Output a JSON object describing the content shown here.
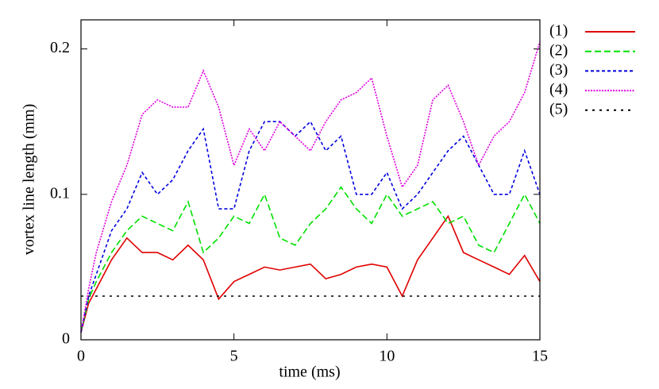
{
  "chart_data": {
    "type": "line",
    "xlabel": "time (ms)",
    "ylabel": "vortex line length (mm)",
    "x": [
      0,
      0.25,
      0.5,
      1,
      1.5,
      2,
      2.5,
      3,
      3.5,
      4,
      4.5,
      5,
      5.5,
      6,
      6.5,
      7,
      7.5,
      8,
      8.5,
      9,
      9.5,
      10,
      10.5,
      11,
      11.5,
      12,
      12.5,
      13,
      13.5,
      14,
      14.5,
      15
    ],
    "xlim": [
      0,
      15
    ],
    "xticks": [
      0,
      5,
      10,
      15
    ],
    "ylim": [
      0,
      0.22
    ],
    "yticks": [
      0,
      0.1,
      0.2
    ],
    "series": [
      {
        "name": "(1)",
        "color": "#e00000",
        "dash": "solid",
        "values": [
          0.005,
          0.025,
          0.035,
          0.055,
          0.07,
          0.06,
          0.06,
          0.055,
          0.065,
          0.055,
          0.028,
          0.04,
          0.045,
          0.05,
          0.048,
          0.05,
          0.052,
          0.042,
          0.045,
          0.05,
          0.052,
          0.05,
          0.03,
          0.055,
          0.07,
          0.085,
          0.06,
          0.055,
          0.05,
          0.045,
          0.058,
          0.04
        ]
      },
      {
        "name": "(2)",
        "color": "#00e000",
        "dash": "dashed",
        "values": [
          0.005,
          0.028,
          0.04,
          0.06,
          0.075,
          0.085,
          0.08,
          0.075,
          0.095,
          0.06,
          0.07,
          0.085,
          0.08,
          0.1,
          0.07,
          0.065,
          0.08,
          0.09,
          0.105,
          0.09,
          0.08,
          0.1,
          0.085,
          0.09,
          0.095,
          0.08,
          0.085,
          0.065,
          0.06,
          0.08,
          0.1,
          0.08
        ]
      },
      {
        "name": "(3)",
        "color": "#0000e0",
        "dash": "dotted",
        "values": [
          0.005,
          0.03,
          0.045,
          0.075,
          0.09,
          0.115,
          0.1,
          0.11,
          0.13,
          0.145,
          0.09,
          0.09,
          0.13,
          0.15,
          0.15,
          0.14,
          0.15,
          0.13,
          0.14,
          0.1,
          0.1,
          0.115,
          0.09,
          0.1,
          0.115,
          0.13,
          0.14,
          0.12,
          0.1,
          0.1,
          0.13,
          0.1
        ]
      },
      {
        "name": "(4)",
        "color": "#e000e0",
        "dash": "fine",
        "values": [
          0.005,
          0.035,
          0.06,
          0.095,
          0.12,
          0.155,
          0.165,
          0.16,
          0.16,
          0.185,
          0.16,
          0.12,
          0.145,
          0.13,
          0.15,
          0.14,
          0.13,
          0.15,
          0.165,
          0.17,
          0.18,
          0.14,
          0.105,
          0.12,
          0.165,
          0.175,
          0.15,
          0.12,
          0.14,
          0.15,
          0.17,
          0.205
        ]
      },
      {
        "name": "(5)",
        "color": "#000000",
        "dash": "sparse",
        "values": [
          0.03,
          0.03,
          0.03,
          0.03,
          0.03,
          0.03,
          0.03,
          0.03,
          0.03,
          0.03,
          0.03,
          0.03,
          0.03,
          0.03,
          0.03,
          0.03,
          0.03,
          0.03,
          0.03,
          0.03,
          0.03,
          0.03,
          0.03,
          0.03,
          0.03,
          0.03,
          0.03,
          0.03,
          0.03,
          0.03,
          0.03,
          0.03
        ]
      }
    ]
  }
}
